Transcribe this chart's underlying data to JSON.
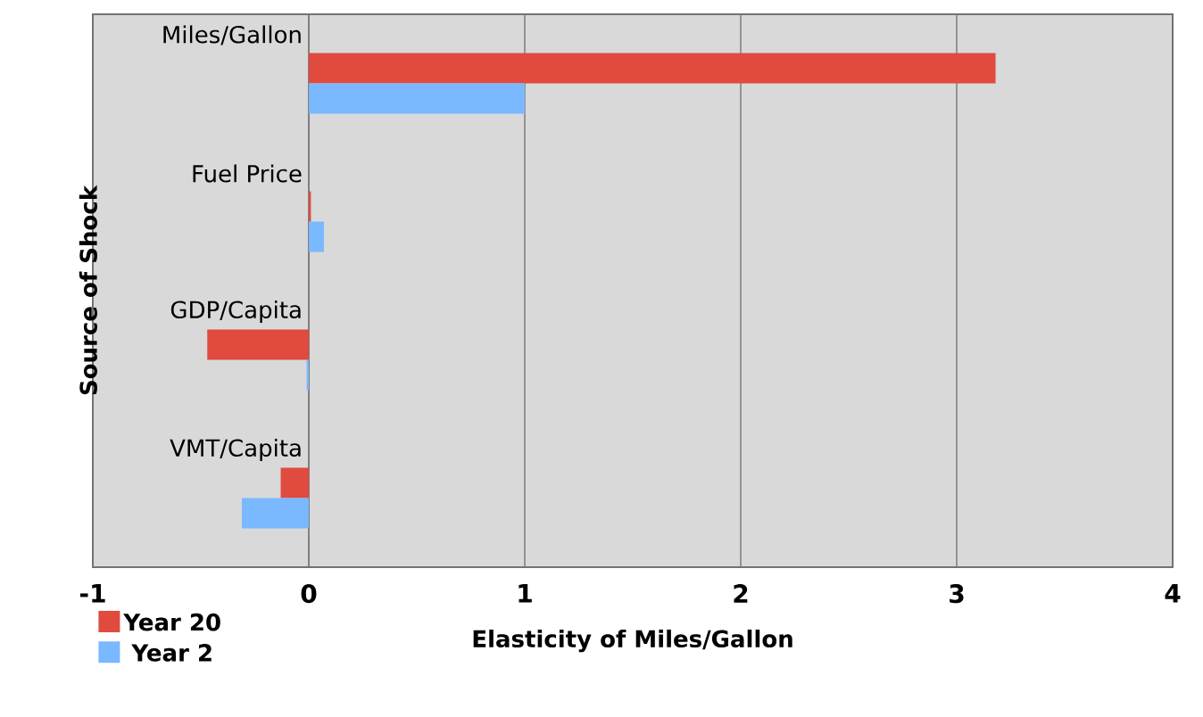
{
  "chart_data": {
    "type": "bar",
    "orientation": "horizontal",
    "xlabel": "Elasticity of Miles/Gallon",
    "ylabel": "Source of Shock",
    "categories": [
      "Miles/Gallon",
      "Fuel Price",
      "GDP/Capita",
      "VMT/Capita"
    ],
    "series": [
      {
        "name": "Year 20",
        "color": "#e04a3f",
        "values": [
          3.18,
          0.01,
          -0.47,
          -0.13
        ]
      },
      {
        "name": "Year 2",
        "color": "#7ab8ff",
        "values": [
          1.0,
          0.07,
          -0.01,
          -0.31
        ]
      }
    ],
    "xlim": [
      -1,
      4
    ],
    "xticks": [
      -1,
      0,
      1,
      2,
      3,
      4
    ],
    "grid": "x",
    "legend": "bottom left"
  }
}
